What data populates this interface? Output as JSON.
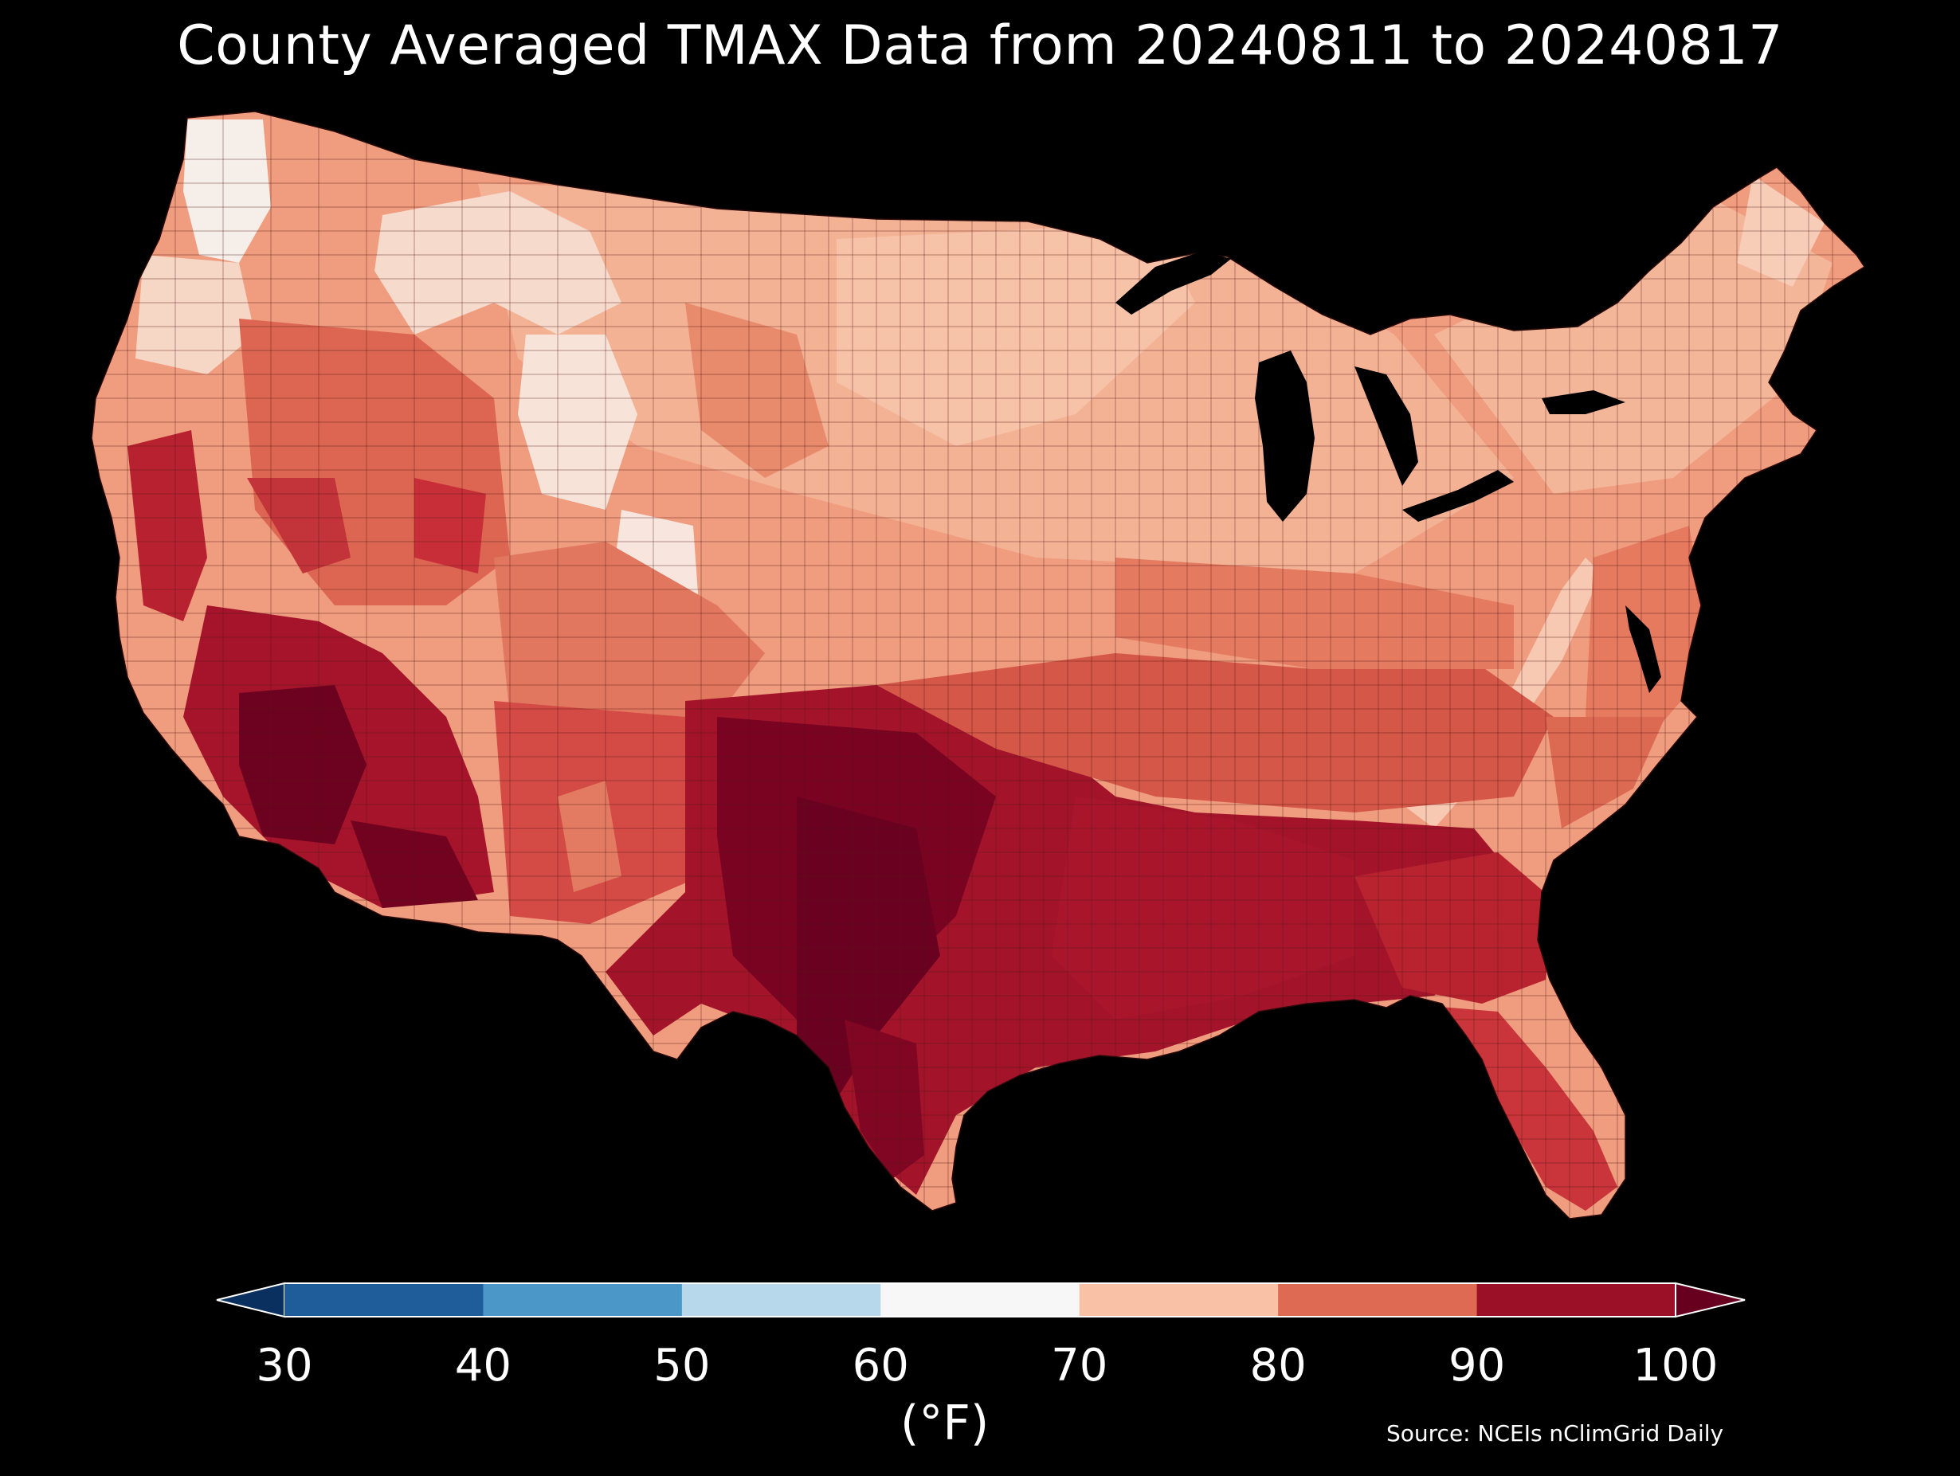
{
  "title": "County Averaged TMAX Data from 20240811 to 20240817",
  "source": "Source: NCEIs nClimGrid Daily",
  "colorbar": {
    "unit": "(°F)",
    "ticks": [
      "30",
      "40",
      "50",
      "60",
      "70",
      "80",
      "90",
      "100"
    ],
    "colors": [
      "#1f5c9a",
      "#4b97c7",
      "#b7d8ea",
      "#f7f7f7",
      "#f9c2a6",
      "#de6a54",
      "#9c1027"
    ],
    "under_color": "#09305f",
    "over_color": "#67001f"
  },
  "map": {
    "region": "contiguous-united-states",
    "palette": {
      "pale": "#f6e4da",
      "light": "#f5b79b",
      "mid": "#ec9273",
      "warm": "#dc6651",
      "hot": "#c3343a",
      "hotter": "#a5142b",
      "hottest": "#6d0220",
      "white": "#f4f2f2",
      "lake": "#000000"
    }
  }
}
